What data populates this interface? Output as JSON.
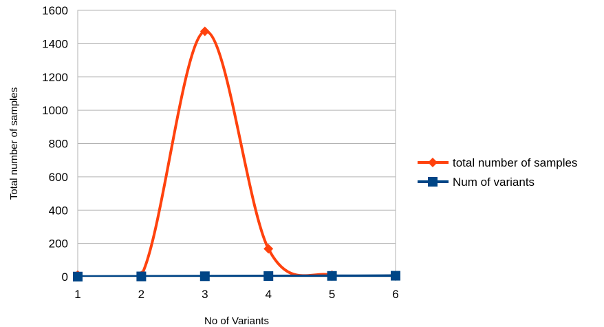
{
  "chart_data": {
    "type": "line",
    "x": [
      1,
      2,
      3,
      4,
      5,
      6
    ],
    "series": [
      {
        "name": "total number of samples",
        "values": [
          10,
          7,
          1474,
          168,
          10,
          8
        ],
        "color": "#ff420e",
        "marker": "diamond",
        "smooth": true
      },
      {
        "name": "Num of variants",
        "values": [
          1,
          2,
          3,
          4,
          5,
          6
        ],
        "color": "#004586",
        "marker": "square",
        "smooth": true
      }
    ],
    "xlabel": "No of Variants",
    "ylabel": "Total number of samples",
    "xlim": [
      1,
      6
    ],
    "ylim": [
      0,
      1600
    ],
    "xticks": [
      "1",
      "2",
      "3",
      "4",
      "5",
      "6"
    ],
    "yticks": [
      "0",
      "200",
      "400",
      "600",
      "800",
      "1000",
      "1200",
      "1400",
      "1600"
    ],
    "grid": "horizontal",
    "legend_position": "right"
  }
}
